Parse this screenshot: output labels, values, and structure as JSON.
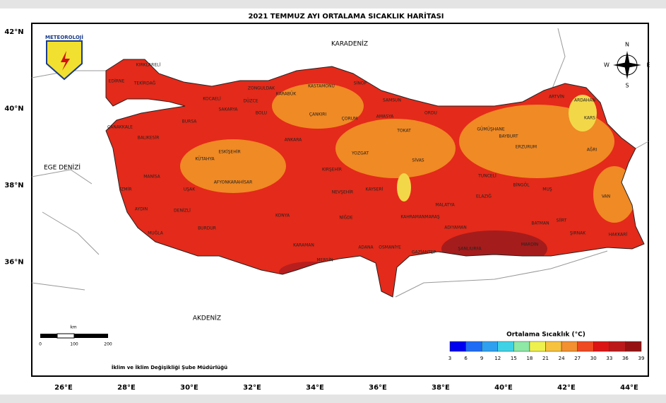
{
  "title": "2021 TEMMUZ AYI ORTALAMA SICAKLIK HARİTASI",
  "seas": [
    "KARADENİZ",
    "EGE DENİZİ",
    "AKDENİZ"
  ],
  "latitude_labels": [
    "42°N",
    "40°N",
    "38°N",
    "36°N"
  ],
  "longitude_labels": [
    "26°E",
    "28°E",
    "30°E",
    "32°E",
    "34°E",
    "36°E",
    "38°E",
    "40°E",
    "42°E",
    "44°E"
  ],
  "logo": "METEOROLOJİ",
  "compass": [
    "N",
    "E",
    "S",
    "W"
  ],
  "scale": {
    "unit": "km",
    "ticks": [
      0,
      100,
      200
    ]
  },
  "credit": "İklim ve İklim Değişikliği Şube Müdürlüğü",
  "legend": {
    "title": "Ortalama Sıcaklık (°C)",
    "colors": [
      "#0000f0",
      "#1e6cf5",
      "#2fa0f0",
      "#3fd2e6",
      "#8ee8a6",
      "#eef04e",
      "#f7c23e",
      "#f39030",
      "#ef4a22",
      "#dd1414",
      "#bc1a1a",
      "#961212"
    ],
    "ticks": [
      3,
      6,
      9,
      12,
      15,
      18,
      21,
      24,
      27,
      30,
      33,
      36,
      39
    ]
  },
  "provinces": [
    "KIRKLARELİ",
    "EDİRNE",
    "TEKİRDAĞ",
    "KOCAELİ",
    "SAKARYA",
    "DÜZCE",
    "ZONGULDAK",
    "KARABÜK",
    "KASTAMONU",
    "SİNOP",
    "SAMSUN",
    "BOLU",
    "ÇANKIRI",
    "ÇORUM",
    "AMASYA",
    "TOKAT",
    "ORDU",
    "GÜMÜŞHANE",
    "BAYBURT",
    "ARTVİN",
    "ARDAHAN",
    "KARS",
    "ERZURUM",
    "AĞRI",
    "ÇANAKKALE",
    "BALIKESİR",
    "BURSA",
    "ESKİŞEHİR",
    "ANKARA",
    "KIRŞEHİR",
    "YOZGAT",
    "SİVAS",
    "KÜTAHYA",
    "AFYONKARAHİSAR",
    "KAYSERİ",
    "NEVŞEHİR",
    "NİĞDE",
    "KONYA",
    "MANİSA",
    "UŞAK",
    "İZMİR",
    "AYDIN",
    "DENİZLİ",
    "MUĞLA",
    "BURDUR",
    "KARAMAN",
    "MERSİN",
    "ADANA",
    "OSMANİYE",
    "GAZİANTEP",
    "ŞANLIURFA",
    "MARDİN",
    "BATMAN",
    "SİİRT",
    "MALATYA",
    "ADIYAMAN",
    "ELAZIĞ",
    "TUNCELİ",
    "BİNGÖL",
    "MUŞ",
    "VAN",
    "HAKKARİ",
    "ŞIRNAK",
    "KAHRAMANMARAŞ"
  ]
}
